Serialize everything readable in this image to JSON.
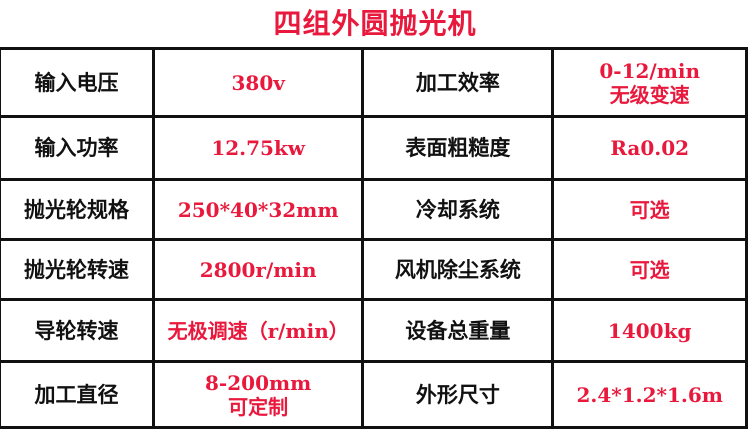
{
  "title": "四组外圆抛光机",
  "rows": [
    {
      "l1": "输入电压",
      "v1": "380v",
      "l2": "加工效率",
      "v2": "0-12/min\n无级变速"
    },
    {
      "l1": "输入功率",
      "v1": "12.75kw",
      "l2": "表面粗糙度",
      "v2": "Ra0.02"
    },
    {
      "l1": "抛光轮规格",
      "v1": "250*40*32mm",
      "l2": "冷却系统",
      "v2": "可选"
    },
    {
      "l1": "抛光轮转速",
      "v1": "2800r/min",
      "l2": "风机除尘系统",
      "v2": "可选"
    },
    {
      "l1": "导轮转速",
      "v1": "无极调速（r/min）",
      "l2": "设备总重量",
      "v2": "1400kg"
    },
    {
      "l1": "加工直径",
      "v1": "8-200mm\n可定制",
      "l2": "外形尺寸",
      "v2": "2.4*1.2*1.6m"
    }
  ],
  "colors": {
    "value": "#e8193c",
    "label": "#111111"
  }
}
